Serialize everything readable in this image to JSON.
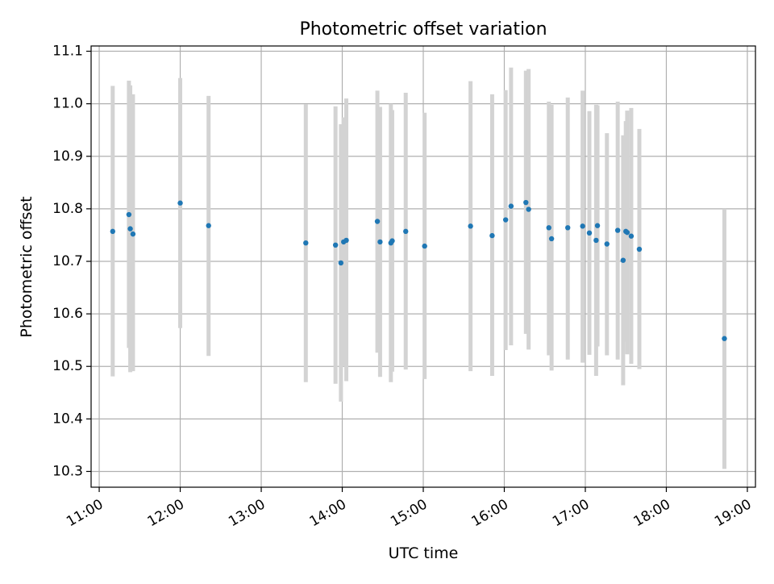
{
  "chart_data": {
    "type": "scatter",
    "title": "Photometric offset variation",
    "xlabel": "UTC time",
    "ylabel": "Photometric offset",
    "x_unit": "UTC hours",
    "xlim": [
      "10:54",
      "19:06"
    ],
    "ylim": [
      10.27,
      11.11
    ],
    "x_ticks": [
      "11:00",
      "12:00",
      "13:00",
      "14:00",
      "15:00",
      "16:00",
      "17:00",
      "18:00",
      "19:00"
    ],
    "y_ticks": [
      "10.3",
      "10.4",
      "10.5",
      "10.6",
      "10.7",
      "10.8",
      "10.9",
      "11.0",
      "11.1"
    ],
    "grid": true,
    "legend": "none",
    "colors": {
      "marker": "#1f77b4",
      "errorbar": "#d3d3d3",
      "grid": "#b0b0b0",
      "frame": "#000000"
    },
    "points": [
      {
        "x": "11:10",
        "y": 10.757,
        "ylo": 10.481,
        "yhi": 11.034
      },
      {
        "x": "11:22",
        "y": 10.789,
        "ylo": 10.535,
        "yhi": 11.044
      },
      {
        "x": "11:23",
        "y": 10.762,
        "ylo": 10.489,
        "yhi": 11.035
      },
      {
        "x": "11:25",
        "y": 10.752,
        "ylo": 10.491,
        "yhi": 11.018
      },
      {
        "x": "12:00",
        "y": 10.811,
        "ylo": 10.573,
        "yhi": 11.049
      },
      {
        "x": "12:21",
        "y": 10.768,
        "ylo": 10.52,
        "yhi": 11.015
      },
      {
        "x": "13:33",
        "y": 10.735,
        "ylo": 10.47,
        "yhi": 10.999
      },
      {
        "x": "13:55",
        "y": 10.731,
        "ylo": 10.467,
        "yhi": 10.995
      },
      {
        "x": "13:59",
        "y": 10.697,
        "ylo": 10.433,
        "yhi": 10.961
      },
      {
        "x": "14:01",
        "y": 10.737,
        "ylo": 10.5,
        "yhi": 10.974
      },
      {
        "x": "14:03",
        "y": 10.74,
        "ylo": 10.472,
        "yhi": 11.01
      },
      {
        "x": "14:26",
        "y": 10.776,
        "ylo": 10.526,
        "yhi": 11.025
      },
      {
        "x": "14:28",
        "y": 10.737,
        "ylo": 10.48,
        "yhi": 10.994
      },
      {
        "x": "14:36",
        "y": 10.735,
        "ylo": 10.47,
        "yhi": 11.0
      },
      {
        "x": "14:37",
        "y": 10.739,
        "ylo": 10.49,
        "yhi": 10.988
      },
      {
        "x": "14:47",
        "y": 10.757,
        "ylo": 10.494,
        "yhi": 11.021
      },
      {
        "x": "15:01",
        "y": 10.729,
        "ylo": 10.476,
        "yhi": 10.983
      },
      {
        "x": "15:35",
        "y": 10.767,
        "ylo": 10.491,
        "yhi": 11.043
      },
      {
        "x": "15:51",
        "y": 10.749,
        "ylo": 10.482,
        "yhi": 11.018
      },
      {
        "x": "16:01",
        "y": 10.779,
        "ylo": 10.531,
        "yhi": 11.026
      },
      {
        "x": "16:05",
        "y": 10.805,
        "ylo": 10.54,
        "yhi": 11.069
      },
      {
        "x": "16:16",
        "y": 10.812,
        "ylo": 10.562,
        "yhi": 11.063
      },
      {
        "x": "16:18",
        "y": 10.799,
        "ylo": 10.532,
        "yhi": 11.066
      },
      {
        "x": "16:33",
        "y": 10.764,
        "ylo": 10.521,
        "yhi": 11.004
      },
      {
        "x": "16:35",
        "y": 10.743,
        "ylo": 10.492,
        "yhi": 10.998
      },
      {
        "x": "16:47",
        "y": 10.764,
        "ylo": 10.513,
        "yhi": 11.012
      },
      {
        "x": "16:58",
        "y": 10.767,
        "ylo": 10.507,
        "yhi": 11.025
      },
      {
        "x": "17:03",
        "y": 10.754,
        "ylo": 10.522,
        "yhi": 10.986
      },
      {
        "x": "17:08",
        "y": 10.74,
        "ylo": 10.482,
        "yhi": 10.998
      },
      {
        "x": "17:09",
        "y": 10.768,
        "ylo": 10.538,
        "yhi": 10.997
      },
      {
        "x": "17:16",
        "y": 10.733,
        "ylo": 10.521,
        "yhi": 10.944
      },
      {
        "x": "17:24",
        "y": 10.759,
        "ylo": 10.513,
        "yhi": 11.004
      },
      {
        "x": "17:28",
        "y": 10.702,
        "ylo": 10.464,
        "yhi": 10.94
      },
      {
        "x": "17:30",
        "y": 10.757,
        "ylo": 10.547,
        "yhi": 10.967
      },
      {
        "x": "17:31",
        "y": 10.755,
        "ylo": 10.523,
        "yhi": 10.987
      },
      {
        "x": "17:34",
        "y": 10.748,
        "ylo": 10.505,
        "yhi": 10.992
      },
      {
        "x": "17:40",
        "y": 10.723,
        "ylo": 10.495,
        "yhi": 10.952
      },
      {
        "x": "18:43",
        "y": 10.553,
        "ylo": 10.305,
        "yhi": 10.8
      }
    ]
  }
}
